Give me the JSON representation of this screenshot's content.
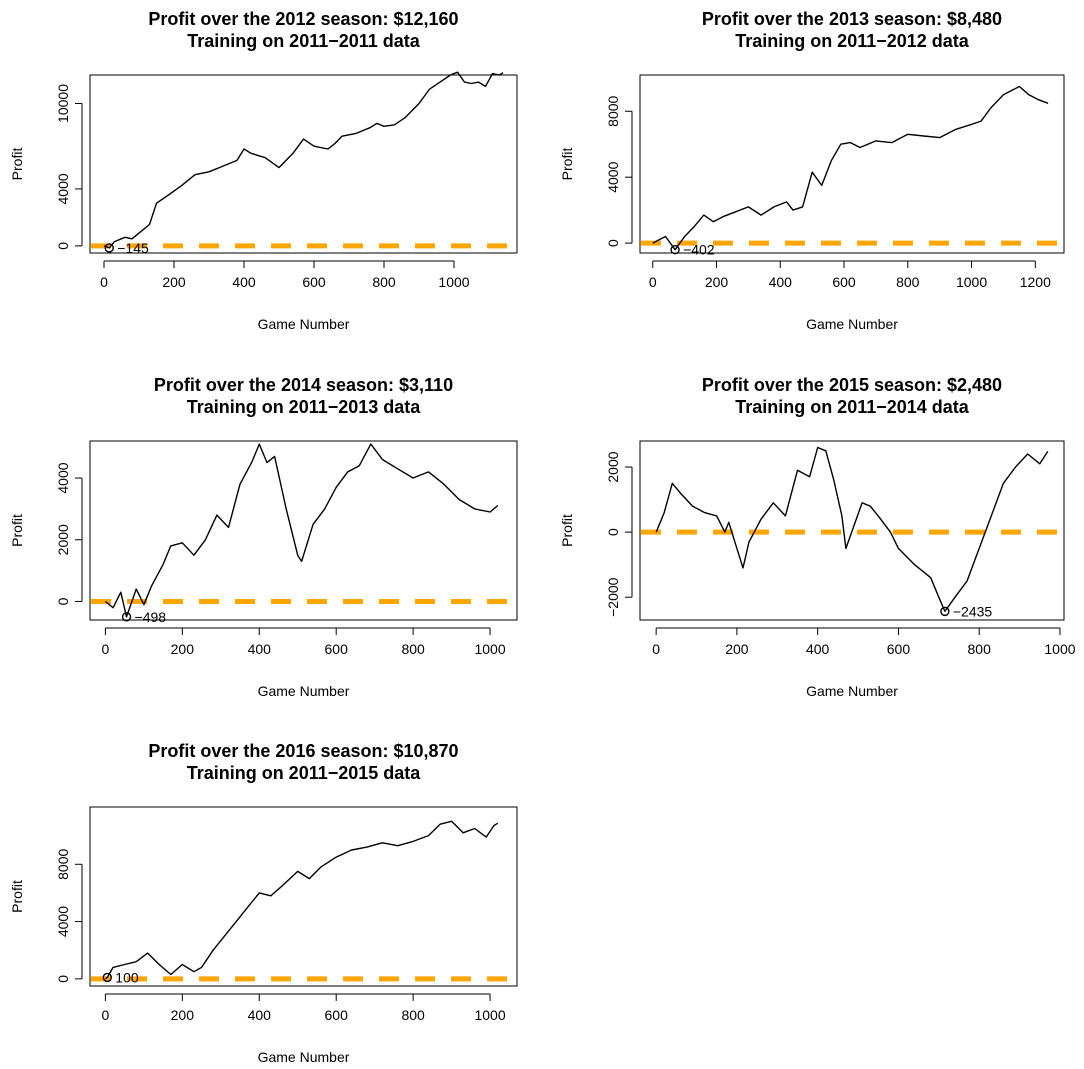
{
  "chart_data": [
    {
      "type": "line",
      "title": "Profit over the 2012 season: $12,160",
      "subtitle": "Training on 2011−2011 data",
      "xlabel": "Game Number",
      "ylabel": "Profit",
      "xlim": [
        -40,
        1180
      ],
      "ylim": [
        -500,
        12000
      ],
      "xticks": [
        0,
        200,
        400,
        600,
        800,
        1000
      ],
      "xtick_labels": [
        "0",
        "200",
        "400",
        "600",
        "800",
        "1000"
      ],
      "yticks": [
        0,
        4000,
        10000
      ],
      "ytick_labels": [
        "0",
        "4000",
        "10000"
      ],
      "baseline": 0,
      "baseline_color": "#FFA500",
      "min_point": {
        "x": 15,
        "y": -145,
        "label": "−145"
      },
      "series": [
        {
          "x": [
            0,
            15,
            30,
            60,
            80,
            100,
            130,
            150,
            180,
            220,
            260,
            300,
            340,
            380,
            400,
            420,
            460,
            500,
            540,
            570,
            600,
            640,
            660,
            680,
            720,
            760,
            780,
            800,
            830,
            860,
            900,
            930,
            960,
            990,
            1010,
            1030,
            1050,
            1070,
            1090,
            1110,
            1130,
            1140
          ],
          "y": [
            0,
            -145,
            300,
            600,
            500,
            900,
            1500,
            3000,
            3500,
            4200,
            5000,
            5200,
            5600,
            6000,
            6800,
            6500,
            6200,
            5500,
            6500,
            7500,
            7000,
            6800,
            7200,
            7700,
            7900,
            8300,
            8600,
            8400,
            8500,
            9000,
            10000,
            11000,
            11500,
            12000,
            12200,
            11500,
            11400,
            11500,
            11200,
            12100,
            12000,
            12160
          ]
        }
      ]
    },
    {
      "type": "line",
      "title": "Profit over the 2013 season: $8,480",
      "subtitle": "Training on 2011−2012 data",
      "xlabel": "Game Number",
      "ylabel": "Profit",
      "xlim": [
        -40,
        1290
      ],
      "ylim": [
        -600,
        10200
      ],
      "xticks": [
        0,
        200,
        400,
        600,
        800,
        1000,
        1200
      ],
      "xtick_labels": [
        "0",
        "200",
        "400",
        "600",
        "800",
        "1000",
        "1200"
      ],
      "yticks": [
        0,
        4000,
        8000
      ],
      "ytick_labels": [
        "0",
        "4000",
        "8000"
      ],
      "baseline": 0,
      "baseline_color": "#FFA500",
      "min_point": {
        "x": 70,
        "y": -402,
        "label": "−402"
      },
      "series": [
        {
          "x": [
            0,
            20,
            40,
            70,
            100,
            130,
            160,
            190,
            220,
            260,
            300,
            340,
            380,
            420,
            440,
            470,
            500,
            530,
            560,
            590,
            620,
            650,
            700,
            750,
            800,
            850,
            900,
            950,
            1000,
            1030,
            1060,
            1100,
            1130,
            1150,
            1180,
            1210,
            1240
          ],
          "y": [
            0,
            200,
            400,
            -402,
            400,
            1000,
            1700,
            1300,
            1600,
            1900,
            2200,
            1700,
            2200,
            2500,
            2000,
            2200,
            4300,
            3500,
            5000,
            6000,
            6100,
            5800,
            6200,
            6100,
            6600,
            6500,
            6400,
            6900,
            7200,
            7400,
            8200,
            9000,
            9300,
            9500,
            9000,
            8700,
            8480
          ]
        }
      ]
    },
    {
      "type": "line",
      "title": "Profit over the 2014 season: $3,110",
      "subtitle": "Training on 2011−2013 data",
      "xlabel": "Game Number",
      "ylabel": "Profit",
      "xlim": [
        -40,
        1070
      ],
      "ylim": [
        -600,
        5200
      ],
      "xticks": [
        0,
        200,
        400,
        600,
        800,
        1000
      ],
      "xtick_labels": [
        "0",
        "200",
        "400",
        "600",
        "800",
        "1000"
      ],
      "yticks": [
        0,
        2000,
        4000
      ],
      "ytick_labels": [
        "0",
        "2000",
        "4000"
      ],
      "baseline": 0,
      "baseline_color": "#FFA500",
      "min_point": {
        "x": 55,
        "y": -498,
        "label": "−498"
      },
      "series": [
        {
          "x": [
            0,
            20,
            40,
            55,
            80,
            100,
            120,
            150,
            170,
            200,
            230,
            260,
            290,
            320,
            350,
            380,
            400,
            420,
            440,
            470,
            500,
            510,
            540,
            570,
            600,
            630,
            660,
            690,
            720,
            760,
            800,
            840,
            880,
            920,
            960,
            1000,
            1020
          ],
          "y": [
            0,
            -200,
            300,
            -498,
            400,
            -100,
            500,
            1200,
            1800,
            1900,
            1500,
            2000,
            2800,
            2400,
            3800,
            4500,
            5100,
            4500,
            4700,
            3000,
            1500,
            1300,
            2500,
            3000,
            3700,
            4200,
            4400,
            5100,
            4600,
            4300,
            4000,
            4200,
            3800,
            3300,
            3000,
            2900,
            3110
          ]
        }
      ]
    },
    {
      "type": "line",
      "title": "Profit over the 2015 season: $2,480",
      "subtitle": "Training on 2011−2014 data",
      "xlabel": "Game Number",
      "ylabel": "Profit",
      "xlim": [
        -40,
        1010
      ],
      "ylim": [
        -2700,
        2800
      ],
      "xticks": [
        0,
        200,
        400,
        600,
        800,
        1000
      ],
      "xtick_labels": [
        "0",
        "200",
        "400",
        "600",
        "800",
        "1000"
      ],
      "yticks": [
        -2000,
        0,
        2000
      ],
      "ytick_labels": [
        "−2000",
        "0",
        "2000"
      ],
      "baseline": 0,
      "baseline_color": "#FFA500",
      "min_point": {
        "x": 715,
        "y": -2435,
        "label": "−2435"
      },
      "series": [
        {
          "x": [
            0,
            20,
            40,
            60,
            90,
            120,
            150,
            170,
            180,
            200,
            215,
            230,
            260,
            290,
            320,
            350,
            380,
            400,
            420,
            440,
            460,
            470,
            490,
            510,
            530,
            550,
            580,
            600,
            640,
            680,
            700,
            715,
            740,
            770,
            800,
            830,
            860,
            890,
            920,
            950,
            970
          ],
          "y": [
            0,
            600,
            1500,
            1200,
            800,
            600,
            500,
            0,
            300,
            -500,
            -1100,
            -300,
            400,
            900,
            500,
            1900,
            1700,
            2600,
            2500,
            1600,
            500,
            -500,
            200,
            900,
            800,
            500,
            0,
            -500,
            -1000,
            -1400,
            -2000,
            -2435,
            -2000,
            -1500,
            -500,
            500,
            1500,
            2000,
            2400,
            2100,
            2480
          ]
        }
      ]
    },
    {
      "type": "line",
      "title": "Profit over the 2016 season: $10,870",
      "subtitle": "Training on 2011−2015 data",
      "xlabel": "Game Number",
      "ylabel": "Profit",
      "xlim": [
        -40,
        1070
      ],
      "ylim": [
        -500,
        12000
      ],
      "xticks": [
        0,
        200,
        400,
        600,
        800,
        1000
      ],
      "xtick_labels": [
        "0",
        "200",
        "400",
        "600",
        "800",
        "1000"
      ],
      "yticks": [
        0,
        4000,
        8000
      ],
      "ytick_labels": [
        "0",
        "4000",
        "8000"
      ],
      "baseline": 0,
      "baseline_color": "#FFA500",
      "min_point": {
        "x": 5,
        "y": 100,
        "label": "100"
      },
      "series": [
        {
          "x": [
            0,
            5,
            20,
            50,
            80,
            110,
            140,
            170,
            200,
            230,
            250,
            280,
            310,
            340,
            370,
            400,
            430,
            460,
            500,
            530,
            560,
            600,
            640,
            680,
            720,
            760,
            800,
            840,
            870,
            900,
            930,
            960,
            990,
            1010,
            1020
          ],
          "y": [
            0,
            100,
            800,
            1000,
            1200,
            1800,
            1000,
            300,
            1000,
            500,
            800,
            2000,
            3000,
            4000,
            5000,
            6000,
            5800,
            6500,
            7500,
            7000,
            7800,
            8500,
            9000,
            9200,
            9500,
            9300,
            9600,
            10000,
            10800,
            11000,
            10200,
            10500,
            9900,
            10700,
            10870
          ]
        }
      ]
    }
  ]
}
